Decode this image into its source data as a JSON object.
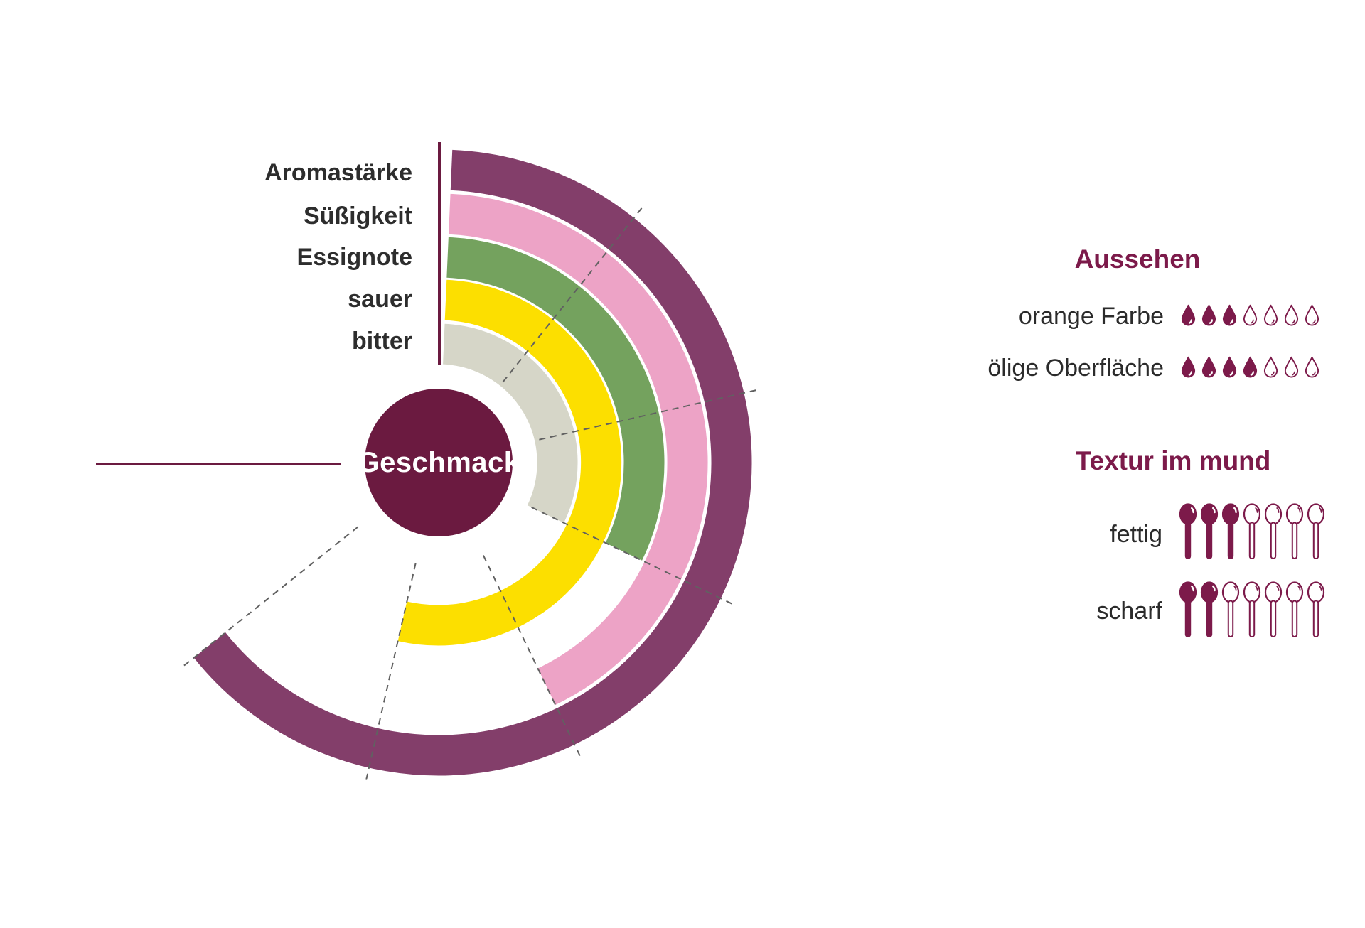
{
  "chart_data": {
    "type": "radial-bar",
    "title": "Geschmack",
    "center_label": "Geschmack",
    "value_max": 7,
    "angle_total_deg": 270,
    "ring_order": "outermost-to-innermost",
    "categories": [
      "Aromastärke",
      "Süßigkeit",
      "Essignote",
      "sauer",
      "bitter"
    ],
    "values": [
      6,
      4,
      3,
      5,
      3
    ],
    "colors": [
      "#833e6a",
      "#eda3c6",
      "#74a25e",
      "#fcdf00",
      "#d6d6c8"
    ],
    "grid": "dashed-sector-dividers",
    "legend_position": "left"
  },
  "right_panel": {
    "sections": [
      {
        "title": "Aussehen",
        "icon": "droplet",
        "rows": [
          {
            "label": "orange Farbe",
            "value": 3,
            "max": 7
          },
          {
            "label": "ölige Oberfläche",
            "value": 4,
            "max": 7
          }
        ]
      },
      {
        "title": "Textur im mund",
        "icon": "spoon",
        "rows": [
          {
            "label": "fettig",
            "value": 3,
            "max": 7
          },
          {
            "label": "scharf",
            "value": 2,
            "max": 7
          }
        ]
      }
    ]
  },
  "theme": {
    "maroon_dark": "#6b1a40",
    "maroon_heading": "#7c1a4a",
    "text_dark": "#2d2d2d",
    "divider_gray": "#616161",
    "background": "#ffffff"
  }
}
